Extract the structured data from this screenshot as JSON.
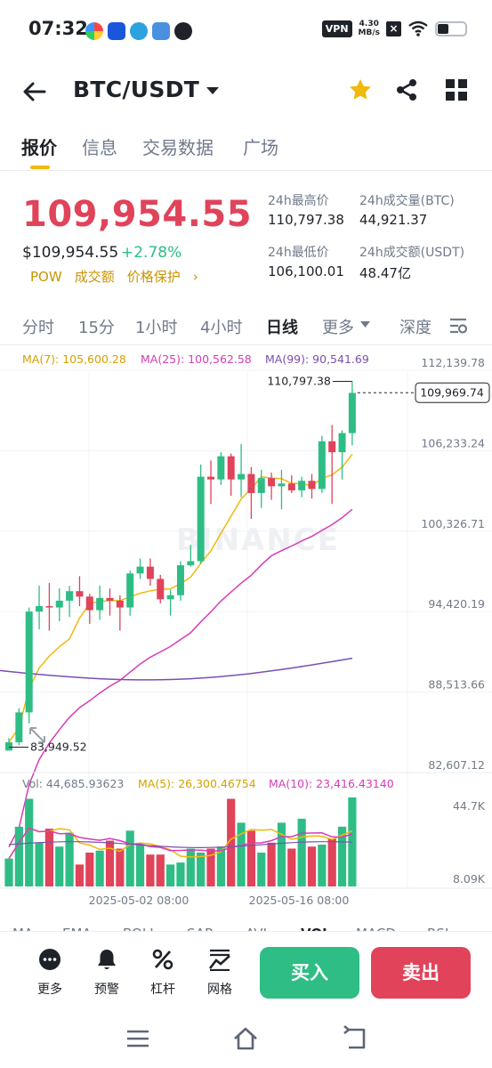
{
  "status_bar": {
    "time": "07:32",
    "vpn": "VPN",
    "speed_value": "4.30",
    "speed_unit": "MB/s",
    "battery_level": 0.4
  },
  "header": {
    "pair": "BTC/USDT"
  },
  "tabs": [
    "报价",
    "信息",
    "交易数据",
    "广场"
  ],
  "ticker": {
    "price": "109,954.55",
    "price_usd": "$109,954.55",
    "change": "+2.78%",
    "tags": [
      "POW",
      "成交额",
      "价格保护"
    ],
    "high_label": "24h最高价",
    "high_value": "110,797.38",
    "low_label": "24h最低价",
    "low_value": "106,100.01",
    "vol_btc_label": "24h成交量(BTC)",
    "vol_btc_value": "44,921.37",
    "vol_usdt_label": "24h成交额(USDT)",
    "vol_usdt_value": "48.47亿"
  },
  "intervals": [
    "分时",
    "15分",
    "1小时",
    "4小时",
    "日线",
    "更多",
    "深度"
  ],
  "chart_data": {
    "type": "candlestick",
    "ma_labels": {
      "ma7": "MA(7): 105,600.28",
      "ma25": "MA(25): 100,562.58",
      "ma99": "MA(99): 90,541.69"
    },
    "y_ticks": [
      "112,139.78",
      "106,233.24",
      "100,326.71",
      "94,420.19",
      "88,513.66",
      "82,607.12"
    ],
    "y_tick_values": [
      112139.78,
      106233.24,
      100326.71,
      94420.19,
      88513.66,
      82607.12
    ],
    "ylim": [
      82607.12,
      112139.78
    ],
    "current_price_label": "109,969.74",
    "current_price": 109969.74,
    "high_marker": "110,797.38",
    "high_value": 110797.38,
    "low_marker": "83,949.52",
    "low_value": 83949.52,
    "watermark": "BINANCE",
    "candles": [
      [
        83700,
        84600,
        83949.52,
        84300
      ],
      [
        84300,
        86800,
        84100,
        86500
      ],
      [
        86500,
        94200,
        85700,
        93900
      ],
      [
        93900,
        95800,
        92600,
        94300
      ],
      [
        94300,
        96000,
        92500,
        94200
      ],
      [
        94200,
        95600,
        93200,
        94700
      ],
      [
        94700,
        95800,
        93500,
        95400
      ],
      [
        95400,
        96500,
        94300,
        95000
      ],
      [
        95000,
        95200,
        93000,
        94000
      ],
      [
        94000,
        95800,
        93300,
        94900
      ],
      [
        94900,
        95600,
        93600,
        94700
      ],
      [
        94700,
        95100,
        92500,
        94200
      ],
      [
        94200,
        96900,
        93600,
        96700
      ],
      [
        96700,
        97800,
        96300,
        97200
      ],
      [
        97200,
        97800,
        95800,
        96300
      ],
      [
        96300,
        96600,
        94500,
        94800
      ],
      [
        94800,
        95500,
        93600,
        95100
      ],
      [
        95100,
        97600,
        94700,
        97300
      ],
      [
        97300,
        98800,
        97200,
        97600
      ],
      [
        97600,
        104700,
        97400,
        103800
      ],
      [
        103800,
        105000,
        101800,
        103600
      ],
      [
        103600,
        105600,
        103200,
        105300
      ],
      [
        105300,
        105500,
        102400,
        103600
      ],
      [
        103600,
        106200,
        102300,
        104000
      ],
      [
        104000,
        104500,
        100700,
        102600
      ],
      [
        102600,
        104300,
        101500,
        103700
      ],
      [
        103700,
        104100,
        102100,
        103100
      ],
      [
        103100,
        104300,
        101400,
        103300
      ],
      [
        103300,
        103900,
        102600,
        102800
      ],
      [
        102800,
        103800,
        102300,
        103500
      ],
      [
        103500,
        104000,
        102200,
        102900
      ],
      [
        102900,
        106800,
        102600,
        106400
      ],
      [
        106400,
        107600,
        101800,
        105600
      ],
      [
        105600,
        107200,
        103600,
        107000
      ],
      [
        107000,
        110797.38,
        106100,
        109954.55
      ]
    ],
    "volume": {
      "label": "Vol: 44,685.93623",
      "ma5_label": "MA(5): 26,300.46754",
      "ma10_label": "MA(10): 23,416.43140",
      "y_ticks": [
        "44.7K",
        "8.09K"
      ],
      "values": [
        14000,
        30000,
        44000,
        22000,
        29000,
        20000,
        27000,
        11000,
        17000,
        18000,
        23000,
        19000,
        28000,
        21000,
        16000,
        16000,
        11000,
        12000,
        19000,
        17000,
        19000,
        20000,
        44000,
        32000,
        28000,
        17000,
        22000,
        32000,
        19000,
        34000,
        20000,
        21000,
        24000,
        30000,
        44685.94
      ]
    },
    "x_labels": [
      "2025-05-02 08:00",
      "2025-05-16 08:00"
    ]
  },
  "indicator_tabs": [
    "MA",
    "EMA",
    "BOLL",
    "SAR",
    "AVL",
    "VOL",
    "MACD",
    "RSI"
  ],
  "bottom_actions": [
    "更多",
    "预警",
    "杠杆",
    "网格"
  ],
  "buy_label": "买入",
  "sell_label": "卖出",
  "colors": {
    "up": "#2ebd85",
    "down": "#e0435a",
    "accent": "#f0b90b",
    "ma7": "#f0b90b",
    "ma25": "#d63db5",
    "ma99": "#7b4fb0"
  }
}
